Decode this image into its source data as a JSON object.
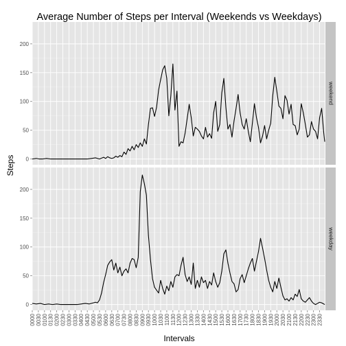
{
  "chart_data": {
    "type": "line",
    "title": "Average Number of Steps per Interval (Weekends vs Weekdays)",
    "xlabel": "Intervals",
    "ylabel": "Steps",
    "ylim": [
      -10,
      238
    ],
    "y_ticks": [
      0,
      50,
      100,
      150,
      200
    ],
    "grid": true,
    "facet": "rows",
    "x_tick_labels": [
      "0000",
      "0030",
      "0100",
      "0130",
      "0200",
      "0230",
      "0300",
      "0330",
      "0400",
      "0430",
      "0500",
      "0530",
      "0600",
      "0630",
      "0700",
      "0730",
      "0800",
      "0830",
      "0900",
      "0930",
      "1000",
      "1030",
      "1100",
      "1130",
      "1200",
      "1230",
      "1300",
      "1330",
      "1400",
      "1430",
      "1500",
      "1530",
      "1600",
      "1630",
      "1700",
      "1730",
      "1800",
      "1830",
      "1900",
      "1930",
      "2000",
      "2030",
      "2100",
      "2130",
      "2200",
      "2230",
      "2300",
      "2330"
    ],
    "x_interval_count": 288,
    "line_color": "#000000",
    "panel_background": "#e5e5e5",
    "strip_background": "#c4c4c4",
    "series": [
      {
        "name": "weekend",
        "x": [
          0,
          4,
          7,
          10,
          14,
          18,
          22,
          26,
          30,
          34,
          38,
          42,
          46,
          50,
          54,
          58,
          62,
          66,
          70,
          72,
          74,
          76,
          78,
          80,
          82,
          84,
          86,
          88,
          90,
          92,
          94,
          96,
          98,
          100,
          102,
          104,
          106,
          108,
          110,
          112,
          114,
          116,
          118,
          120,
          122,
          124,
          126,
          128,
          130,
          132,
          134,
          136,
          138,
          140,
          142,
          144,
          146,
          148,
          150,
          152,
          154,
          156,
          158,
          160,
          162,
          164,
          166,
          168,
          170,
          172,
          174,
          176,
          178,
          180,
          182,
          184,
          186,
          188,
          190,
          192,
          194,
          196,
          198,
          200,
          202,
          204,
          206,
          208,
          210,
          212,
          214,
          216,
          218,
          220,
          222,
          224,
          226,
          228,
          230,
          232,
          234,
          236,
          238,
          240,
          242,
          244,
          246,
          248,
          250,
          252,
          254,
          256,
          258,
          260,
          262,
          264,
          266,
          268,
          270,
          272,
          274,
          276,
          278,
          280,
          282,
          284,
          286,
          287
        ],
        "y": [
          0,
          1,
          0,
          0,
          1,
          0,
          0,
          0,
          0,
          0,
          0,
          0,
          0,
          0,
          0,
          1,
          2,
          0,
          3,
          1,
          4,
          2,
          1,
          2,
          5,
          3,
          6,
          4,
          12,
          8,
          18,
          14,
          22,
          16,
          25,
          20,
          28,
          22,
          35,
          26,
          60,
          88,
          89,
          74,
          90,
          120,
          138,
          155,
          162,
          140,
          75,
          110,
          165,
          85,
          118,
          22,
          30,
          28,
          45,
          70,
          95,
          72,
          40,
          55,
          52,
          48,
          40,
          35,
          55,
          38,
          44,
          36,
          80,
          100,
          48,
          60,
          115,
          140,
          90,
          52,
          60,
          38,
          66,
          88,
          112,
          80,
          60,
          52,
          70,
          48,
          30,
          62,
          96,
          72,
          55,
          28,
          40,
          58,
          35,
          50,
          62,
          110,
          142,
          118,
          92,
          88,
          70,
          110,
          102,
          78,
          95,
          60,
          58,
          42,
          52,
          96,
          80,
          60,
          38,
          42,
          65,
          52,
          48,
          35,
          72,
          88,
          46,
          30
        ],
        "_note": "seen"
      },
      {
        "name": "weekday",
        "x": [
          0,
          4,
          8,
          12,
          16,
          20,
          24,
          28,
          32,
          36,
          40,
          44,
          48,
          52,
          56,
          60,
          62,
          64,
          66,
          68,
          70,
          72,
          74,
          76,
          78,
          80,
          82,
          84,
          86,
          88,
          90,
          92,
          94,
          96,
          98,
          100,
          102,
          104,
          106,
          108,
          110,
          112,
          114,
          116,
          118,
          120,
          122,
          124,
          126,
          128,
          130,
          132,
          134,
          136,
          138,
          140,
          142,
          144,
          146,
          148,
          150,
          152,
          154,
          156,
          158,
          160,
          162,
          164,
          166,
          168,
          170,
          172,
          174,
          176,
          178,
          180,
          182,
          184,
          186,
          188,
          190,
          192,
          194,
          196,
          198,
          200,
          202,
          204,
          206,
          208,
          210,
          212,
          214,
          216,
          218,
          220,
          222,
          224,
          226,
          228,
          230,
          232,
          234,
          236,
          238,
          240,
          242,
          244,
          246,
          248,
          250,
          252,
          254,
          256,
          258,
          260,
          262,
          264,
          266,
          268,
          270,
          272,
          274,
          276,
          278,
          280,
          282,
          284,
          286,
          287
        ],
        "y": [
          2,
          1,
          2,
          0,
          1,
          0,
          1,
          0,
          0,
          0,
          0,
          0,
          1,
          2,
          1,
          3,
          4,
          3,
          8,
          20,
          38,
          52,
          68,
          74,
          78,
          60,
          72,
          55,
          65,
          50,
          58,
          62,
          55,
          72,
          80,
          78,
          64,
          82,
          196,
          225,
          210,
          190,
          120,
          78,
          45,
          30,
          25,
          20,
          42,
          28,
          18,
          32,
          24,
          40,
          30,
          48,
          52,
          50,
          68,
          82,
          52,
          40,
          48,
          35,
          72,
          28,
          42,
          30,
          48,
          38,
          42,
          28,
          40,
          34,
          55,
          40,
          30,
          38,
          58,
          88,
          95,
          72,
          55,
          40,
          36,
          22,
          26,
          45,
          52,
          38,
          50,
          62,
          72,
          80,
          58,
          75,
          92,
          115,
          98,
          80,
          60,
          42,
          30,
          22,
          40,
          28,
          46,
          30,
          15,
          8,
          10,
          6,
          12,
          8,
          18,
          14,
          26,
          10,
          6,
          4,
          8,
          12,
          6,
          2,
          0,
          2,
          4,
          3,
          1,
          0
        ],
        "_note": "seen"
      }
    ],
    "facets": [
      {
        "strip": "weekend"
      },
      {
        "strip": "weekday"
      }
    ]
  }
}
